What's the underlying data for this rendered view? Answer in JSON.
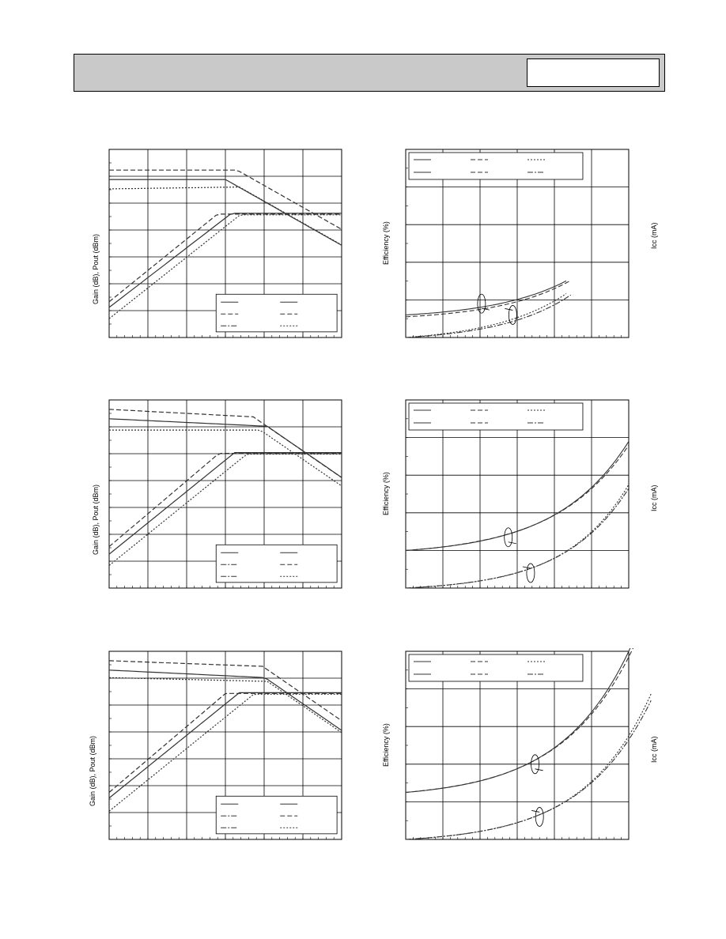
{
  "header": {
    "title": "",
    "part_box": ""
  },
  "charts": [
    {
      "id": "gain-pout-1",
      "ylabel": "Gain (dB), Pout (dBm)",
      "legend_position": "bottom-right",
      "legend_columns": 2
    },
    {
      "id": "eff-icc-1",
      "ylabel": "Efficiency (%)",
      "y2label": "Icc (mA)",
      "legend_position": "top",
      "legend_columns": 3
    },
    {
      "id": "gain-pout-2",
      "ylabel": "Gain (dB), Pout (dBm)",
      "legend_position": "bottom-right",
      "legend_columns": 2
    },
    {
      "id": "eff-icc-2",
      "ylabel": "Efficiency (%)",
      "y2label": "Icc (mA)",
      "legend_position": "top",
      "legend_columns": 3
    },
    {
      "id": "gain-pout-3",
      "ylabel": "Gain (dB), Pout (dBm)",
      "legend_position": "bottom-right",
      "legend_columns": 2
    },
    {
      "id": "eff-icc-3",
      "ylabel": "Efficiency (%)",
      "y2label": "Icc (mA)",
      "legend_position": "top",
      "legend_columns": 3
    }
  ],
  "colors": {
    "line": "#333333",
    "grid": "#000000",
    "header": "#c9c9c9"
  }
}
